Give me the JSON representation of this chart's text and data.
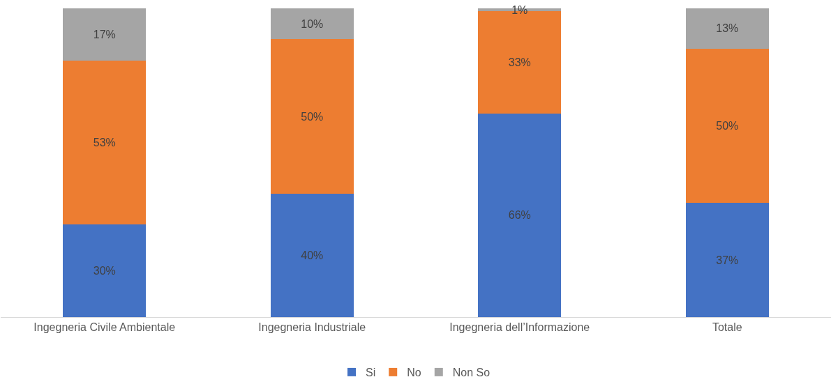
{
  "chart_data": {
    "type": "bar",
    "stacked": true,
    "categories": [
      "Ingegneria Civile Ambientale",
      "Ingegneria Industriale",
      "Ingegneria dell’Informazione",
      "Totale"
    ],
    "series": [
      {
        "name": "Si",
        "color": "#4472c4",
        "values": [
          30,
          40,
          66,
          37
        ],
        "value_labels": [
          "30%",
          "40%",
          "66%",
          "37%"
        ]
      },
      {
        "name": "No",
        "color": "#ed7d31",
        "values": [
          53,
          50,
          33,
          50
        ],
        "value_labels": [
          "53%",
          "50%",
          "33%",
          "50%"
        ]
      },
      {
        "name": "Non So",
        "color": "#a5a5a5",
        "values": [
          17,
          10,
          1,
          13
        ],
        "value_labels": [
          "17%",
          "10%",
          "1%",
          "13%"
        ]
      }
    ],
    "tick_labels": "x",
    "legend": "bottom"
  }
}
